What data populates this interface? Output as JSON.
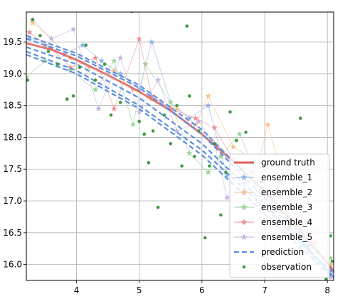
{
  "chart_data": {
    "type": "line",
    "title": "",
    "xlabel": "",
    "ylabel": "",
    "xlim": [
      3.2,
      8.1
    ],
    "ylim": [
      15.75,
      19.97
    ],
    "x_ticks": [
      4,
      5,
      6,
      7,
      8
    ],
    "y_ticks": [
      16.0,
      16.5,
      17.0,
      17.5,
      18.0,
      18.5,
      19.0,
      19.5
    ],
    "grid": true,
    "legend_position": "lower-right",
    "legend": [
      {
        "label": "ground truth",
        "color": "#e0605a",
        "style": "line"
      },
      {
        "label": "ensemble_1",
        "color": "#8fb3e6",
        "style": "star-line"
      },
      {
        "label": "ensemble_2",
        "color": "#f7c08a",
        "style": "star-line"
      },
      {
        "label": "ensemble_3",
        "color": "#9ad39a",
        "style": "star-line"
      },
      {
        "label": "ensemble_4",
        "color": "#ef8f91",
        "style": "star-line"
      },
      {
        "label": "ensemble_5",
        "color": "#c7b1e2",
        "style": "star-line"
      },
      {
        "label": "prediction",
        "color": "#5b8fe0",
        "style": "dashed"
      },
      {
        "label": "observation",
        "color": "#3d9a3d",
        "style": "dot"
      }
    ],
    "ground_truth": {
      "x": [
        3.2,
        3.6,
        4.0,
        4.5,
        5.0,
        5.5,
        6.0,
        6.5,
        7.0,
        7.5,
        8.0,
        8.1
      ],
      "y": [
        19.48,
        19.38,
        19.22,
        18.98,
        18.72,
        18.42,
        18.05,
        17.62,
        17.15,
        16.62,
        16.02,
        15.88
      ]
    },
    "prediction_curves": [
      {
        "x": [
          3.2,
          4.0,
          5.0,
          6.0,
          7.0,
          8.1
        ],
        "y": [
          19.55,
          19.28,
          18.78,
          18.05,
          17.05,
          15.8
        ]
      },
      {
        "x": [
          3.2,
          4.0,
          5.0,
          6.0,
          7.0,
          8.1
        ],
        "y": [
          19.42,
          19.15,
          18.62,
          17.9,
          16.95,
          15.8
        ]
      },
      {
        "x": [
          3.2,
          4.0,
          5.0,
          6.0,
          7.0,
          8.1
        ],
        "y": [
          19.35,
          19.05,
          18.5,
          17.8,
          16.9,
          15.85
        ]
      },
      {
        "x": [
          3.2,
          4.0,
          5.0,
          6.0,
          7.0,
          8.1
        ],
        "y": [
          19.6,
          19.32,
          18.82,
          18.12,
          17.12,
          15.9
        ]
      },
      {
        "x": [
          3.2,
          4.0,
          5.0,
          6.0,
          7.0,
          8.1
        ],
        "y": [
          19.3,
          19.0,
          18.45,
          17.72,
          16.8,
          15.78
        ]
      }
    ],
    "ensembles": [
      {
        "name": "ensemble_1",
        "color": "#8fb3e6",
        "x": [
          3.25,
          3.5,
          3.8,
          4.1,
          4.4,
          4.7,
          5.0,
          5.2,
          5.5,
          5.8,
          6.1,
          6.4,
          6.8,
          7.2,
          7.6,
          8.05
        ],
        "y": [
          19.55,
          19.45,
          19.3,
          19.45,
          19.2,
          19.0,
          18.75,
          19.5,
          18.55,
          18.3,
          18.5,
          17.4,
          17.6,
          17.2,
          16.3,
          15.85
        ]
      },
      {
        "name": "ensemble_2",
        "color": "#f7c08a",
        "x": [
          3.3,
          3.6,
          3.9,
          4.2,
          4.6,
          4.9,
          5.2,
          5.6,
          5.9,
          6.1,
          6.5,
          6.9,
          7.05,
          7.4,
          7.8,
          8.05
        ],
        "y": [
          19.8,
          19.55,
          19.25,
          19.1,
          19.05,
          18.75,
          18.6,
          18.45,
          18.2,
          18.65,
          17.85,
          17.6,
          18.2,
          17.0,
          16.5,
          16.0
        ]
      },
      {
        "name": "ensemble_3",
        "color": "#9ad39a",
        "x": [
          3.2,
          3.5,
          3.9,
          4.3,
          4.6,
          4.9,
          5.1,
          5.5,
          5.8,
          6.1,
          6.3,
          6.6,
          6.9,
          7.3,
          7.7,
          8.05
        ],
        "y": [
          18.95,
          19.2,
          19.05,
          18.75,
          19.2,
          18.2,
          19.15,
          18.55,
          17.75,
          17.45,
          17.7,
          18.05,
          17.35,
          16.7,
          16.2,
          16.1
        ]
      },
      {
        "name": "ensemble_4",
        "color": "#ef8f91",
        "x": [
          3.25,
          3.6,
          3.9,
          4.3,
          4.6,
          5.0,
          5.2,
          5.5,
          5.9,
          6.2,
          6.5,
          6.8,
          7.1,
          7.5,
          7.8,
          8.05
        ],
        "y": [
          19.65,
          19.4,
          19.1,
          19.25,
          18.45,
          19.55,
          18.65,
          18.45,
          18.3,
          18.15,
          17.65,
          17.45,
          17.05,
          16.7,
          16.35,
          15.95
        ]
      },
      {
        "name": "ensemble_5",
        "color": "#c7b1e2",
        "x": [
          3.3,
          3.6,
          3.95,
          4.35,
          4.7,
          5.0,
          5.3,
          5.6,
          5.95,
          6.2,
          6.4,
          6.7,
          7.0,
          7.4,
          7.7,
          8.05
        ],
        "y": [
          19.85,
          19.55,
          19.7,
          18.45,
          19.25,
          18.4,
          18.9,
          18.1,
          18.25,
          17.9,
          17.05,
          17.3,
          16.9,
          16.6,
          16.25,
          15.8
        ]
      }
    ],
    "observations": {
      "x": [
        3.22,
        3.3,
        3.42,
        3.55,
        3.7,
        3.85,
        3.95,
        4.05,
        4.15,
        4.3,
        4.45,
        4.55,
        4.7,
        4.88,
        5.0,
        5.08,
        5.15,
        5.22,
        5.3,
        5.4,
        5.5,
        5.6,
        5.68,
        5.76,
        5.8,
        5.88,
        5.95,
        6.05,
        6.12,
        6.2,
        6.3,
        6.38,
        6.45,
        6.55,
        6.62,
        6.7,
        6.8,
        6.95,
        7.1,
        7.25,
        7.4,
        7.57,
        7.7,
        7.85,
        7.98,
        8.05,
        8.08
      ],
      "y": [
        18.9,
        19.85,
        19.6,
        19.35,
        19.15,
        18.6,
        18.65,
        19.1,
        19.45,
        18.9,
        19.15,
        18.35,
        18.55,
        19.98,
        18.25,
        18.05,
        17.6,
        18.1,
        16.9,
        18.35,
        17.9,
        18.5,
        17.55,
        19.75,
        18.65,
        17.7,
        18.1,
        16.42,
        17.55,
        17.9,
        16.78,
        17.45,
        18.4,
        17.95,
        17.5,
        18.08,
        17.6,
        17.3,
        16.9,
        17.15,
        16.6,
        18.3,
        16.3,
        16.2,
        15.77,
        16.45,
        16.05
      ]
    }
  }
}
